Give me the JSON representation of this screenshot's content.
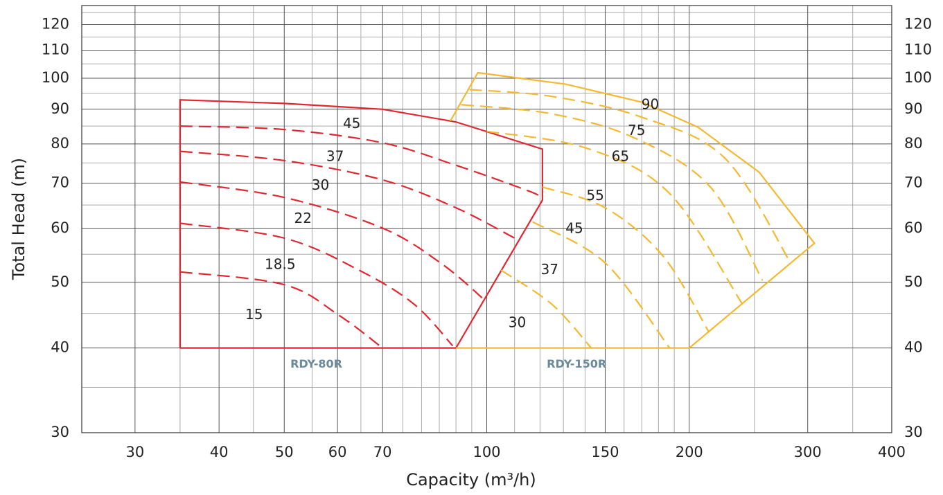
{
  "chart_data": {
    "type": "line",
    "x_label": "Capacity (m³/h)",
    "y_label": "Total Head (m)",
    "xscale": "log",
    "yscale": "log",
    "xlim": [
      25,
      400
    ],
    "ylim": [
      30,
      128
    ],
    "y2lim": [
      30,
      128
    ],
    "xticks": [
      30,
      40,
      50,
      60,
      70,
      100,
      150,
      200,
      300,
      400
    ],
    "yticks": [
      30,
      40,
      50,
      60,
      70,
      80,
      90,
      100,
      110,
      120
    ],
    "y2ticks": [
      30,
      40,
      50,
      60,
      70,
      80,
      90,
      100,
      110,
      120
    ],
    "xgrid": [
      35,
      45,
      55,
      65,
      75,
      80,
      85,
      90,
      95,
      110,
      120,
      130,
      140,
      160,
      170,
      180,
      190,
      250,
      350
    ],
    "ygrid": [
      35,
      45,
      55,
      65,
      75,
      85,
      95,
      105,
      115,
      125
    ],
    "grid": true,
    "series": [
      {
        "color": "#e2262f",
        "dash": false,
        "x": [
          35,
          35,
          50,
          70,
          90,
          121,
          121,
          90,
          35
        ],
        "values": [
          40,
          92.9,
          91.8,
          90,
          86.2,
          78.6,
          66.1,
          40,
          40
        ]
      },
      {
        "color": "#e2262f",
        "dash": true,
        "x": [
          35,
          50,
          70,
          90,
          114,
          120
        ],
        "values": [
          85,
          84,
          80.3,
          74.4,
          68.5,
          67
        ]
      },
      {
        "color": "#e2262f",
        "dash": true,
        "x": [
          35,
          50,
          70,
          90,
          110
        ],
        "values": [
          78,
          75.6,
          70.8,
          64.4,
          58.1
        ]
      },
      {
        "color": "#e2262f",
        "dash": true,
        "x": [
          35,
          50,
          70,
          85.8,
          99
        ],
        "values": [
          70.3,
          66.7,
          60.1,
          53.2,
          47.2
        ]
      },
      {
        "color": "#e2262f",
        "dash": true,
        "x": [
          35,
          50,
          64.6,
          78,
          89
        ],
        "values": [
          61.1,
          58.1,
          52.1,
          46.4,
          40.3
        ]
      },
      {
        "color": "#e2262f",
        "dash": true,
        "x": [
          35,
          50,
          60.3,
          70
        ],
        "values": [
          51.8,
          49.6,
          44.7,
          40
        ]
      },
      {
        "color": "#f5b82e",
        "dash": false,
        "x": [
          88.3,
          97,
          131,
          170,
          206,
          254,
          307,
          200,
          90
        ],
        "values": [
          86.5,
          101.9,
          98,
          92.2,
          84.7,
          72.7,
          57.1,
          40,
          40
        ]
      },
      {
        "color": "#f5b82e",
        "dash": true,
        "x": [
          94.3,
          125,
          170,
          226,
          283
        ],
        "values": [
          96.2,
          94,
          87.6,
          76.2,
          53.4
        ]
      },
      {
        "color": "#f5b82e",
        "dash": true,
        "x": [
          91.7,
          125,
          166,
          215,
          257
        ],
        "values": [
          91.4,
          88.6,
          81.6,
          69.1,
          50.3
        ]
      },
      {
        "color": "#f5b82e",
        "dash": true,
        "x": [
          100,
          141,
          187,
          240
        ],
        "values": [
          83.5,
          78.8,
          67.6,
          46.4
        ]
      },
      {
        "color": "#f5b82e",
        "dash": true,
        "x": [
          121,
          150,
          183,
          214
        ],
        "values": [
          69.1,
          64.4,
          54.6,
          42.2
        ]
      },
      {
        "color": "#f5b82e",
        "dash": true,
        "x": [
          117,
          150,
          187
        ],
        "values": [
          61.4,
          53.4,
          40
        ]
      },
      {
        "color": "#f5b82e",
        "dash": true,
        "x": [
          105,
          125,
          143
        ],
        "values": [
          52.1,
          46.4,
          40
        ]
      }
    ],
    "annotations": [
      {
        "text": "45",
        "x": 63,
        "y": 85.5
      },
      {
        "text": "37",
        "x": 59.5,
        "y": 76.5
      },
      {
        "text": "30",
        "x": 56.6,
        "y": 69.4
      },
      {
        "text": "22",
        "x": 53.3,
        "y": 62
      },
      {
        "text": "18.5",
        "x": 49.3,
        "y": 53
      },
      {
        "text": "15",
        "x": 45.1,
        "y": 44.7
      },
      {
        "text": "90",
        "x": 175,
        "y": 91.2
      },
      {
        "text": "75",
        "x": 167,
        "y": 83.5
      },
      {
        "text": "65",
        "x": 158,
        "y": 76.5
      },
      {
        "text": "55",
        "x": 145,
        "y": 67
      },
      {
        "text": "45",
        "x": 135,
        "y": 59.9
      },
      {
        "text": "37",
        "x": 124,
        "y": 52.1
      },
      {
        "text": "30",
        "x": 111,
        "y": 43.5
      }
    ],
    "region_labels": [
      {
        "text": "RDY-80R",
        "x": 55.8,
        "y": 37.8,
        "color": "#6a8a9a"
      },
      {
        "text": "RDY-150R",
        "x": 136,
        "y": 37.8,
        "color": "#6a8a9a"
      }
    ]
  }
}
